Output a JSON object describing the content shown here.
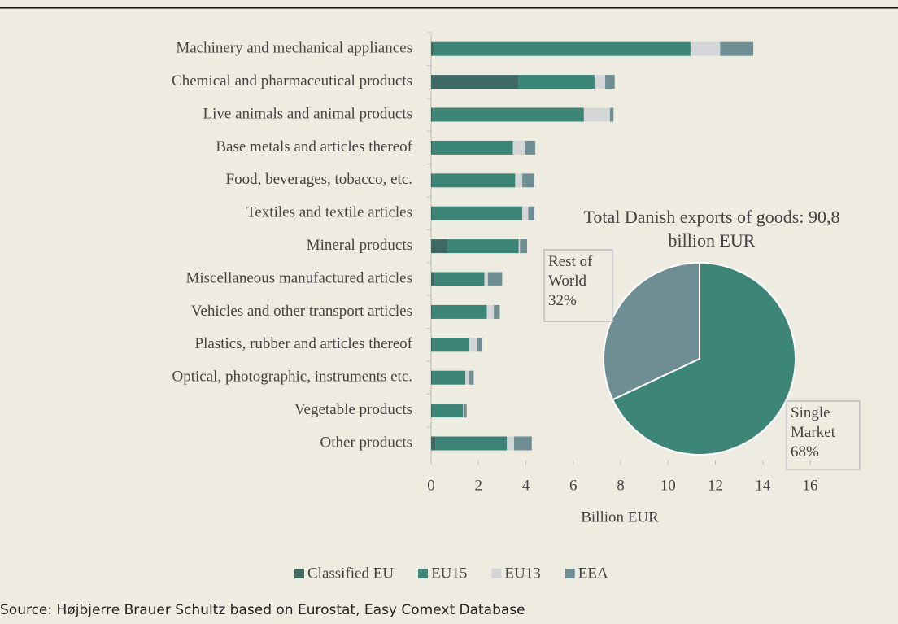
{
  "chart_data": [
    {
      "type": "bar",
      "orientation": "horizontal",
      "stacked": true,
      "categories": [
        "Machinery and mechanical appliances",
        "Chemical and pharmaceutical products",
        "Live animals and animal products",
        "Base metals and articles thereof",
        "Food, beverages, tobacco, etc.",
        "Textiles and textile articles",
        "Mineral products",
        "Miscellaneous manufactured articles",
        "Vehicles and other transport articles",
        "Plastics, rubber and articles thereof",
        "Optical, photographic, instruments etc.",
        "Vegetable products",
        "Other products"
      ],
      "series": [
        {
          "name": "Classified EU",
          "color": "#3f6a63",
          "values": [
            0.1,
            3.7,
            0.05,
            0.05,
            0.05,
            0.05,
            0.7,
            0.15,
            0.05,
            0.05,
            0.05,
            0.05,
            0.2
          ]
        },
        {
          "name": "EU15",
          "color": "#3d8577",
          "values": [
            10.85,
            3.2,
            6.4,
            3.4,
            3.5,
            3.8,
            3.0,
            2.1,
            2.3,
            1.55,
            1.4,
            1.3,
            3.0
          ]
        },
        {
          "name": "EU13",
          "color": "#d3d5d6",
          "values": [
            1.25,
            0.45,
            1.1,
            0.5,
            0.3,
            0.25,
            0.05,
            0.15,
            0.3,
            0.35,
            0.15,
            0.05,
            0.3
          ]
        },
        {
          "name": "EEA",
          "color": "#6e8e94",
          "values": [
            1.4,
            0.4,
            0.15,
            0.45,
            0.5,
            0.25,
            0.3,
            0.6,
            0.25,
            0.2,
            0.2,
            0.1,
            0.75
          ]
        }
      ],
      "xlim": [
        0,
        16
      ],
      "xticks": [
        0,
        2,
        4,
        6,
        8,
        10,
        12,
        14,
        16
      ],
      "xlabel": "Billion EUR",
      "legend": "bottom",
      "grid": false
    },
    {
      "type": "pie",
      "title": "Total Danish exports of goods: 90,8 billion EUR",
      "labels": [
        "Single Market",
        "Rest of World"
      ],
      "values": [
        68,
        32
      ],
      "value_labels": [
        "68%",
        "32%"
      ],
      "colors": [
        "#3d8577",
        "#6e8e94"
      ]
    }
  ],
  "source": "Source: Højbjerre Brauer Schultz based on Eurostat, Easy Comext Database"
}
